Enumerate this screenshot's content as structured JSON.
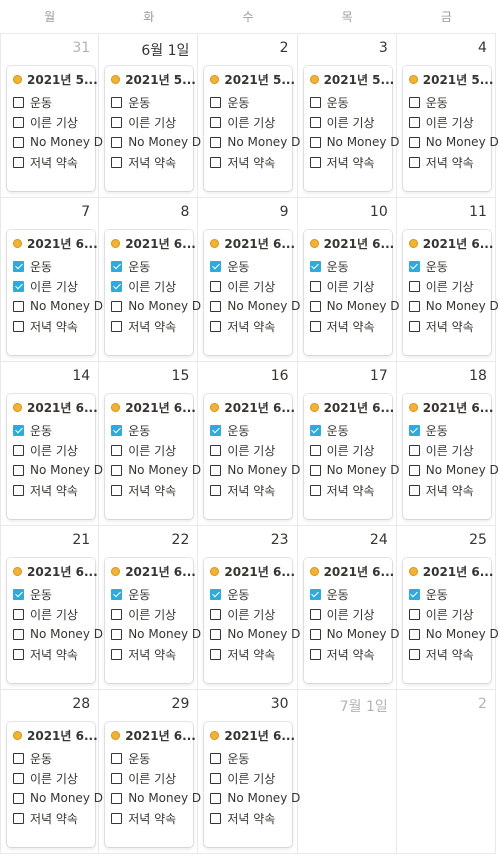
{
  "weekdays": [
    "월",
    "화",
    "수",
    "목",
    "금"
  ],
  "weeks": [
    {
      "days": [
        {
          "number": "31",
          "muted": true,
          "card": {
            "title": "2021년 5...",
            "tasks": [
              {
                "label": "운동",
                "checked": false
              },
              {
                "label": "이른 기상",
                "checked": false
              },
              {
                "label": "No Money D",
                "checked": false
              },
              {
                "label": "저녁 약속",
                "checked": false
              }
            ]
          }
        },
        {
          "number": "6월 1일",
          "muted": false,
          "card": {
            "title": "2021년 5...",
            "tasks": [
              {
                "label": "운동",
                "checked": false
              },
              {
                "label": "이른 기상",
                "checked": false
              },
              {
                "label": "No Money D",
                "checked": false
              },
              {
                "label": "저녁 약속",
                "checked": false
              }
            ]
          }
        },
        {
          "number": "2",
          "muted": false,
          "card": {
            "title": "2021년 5...",
            "tasks": [
              {
                "label": "운동",
                "checked": false
              },
              {
                "label": "이른 기상",
                "checked": false
              },
              {
                "label": "No Money D",
                "checked": false
              },
              {
                "label": "저녁 약속",
                "checked": false
              }
            ]
          }
        },
        {
          "number": "3",
          "muted": false,
          "card": {
            "title": "2021년 5...",
            "tasks": [
              {
                "label": "운동",
                "checked": false
              },
              {
                "label": "이른 기상",
                "checked": false
              },
              {
                "label": "No Money D",
                "checked": false
              },
              {
                "label": "저녁 약속",
                "checked": false
              }
            ]
          }
        },
        {
          "number": "4",
          "muted": false,
          "card": {
            "title": "2021년 5...",
            "tasks": [
              {
                "label": "운동",
                "checked": false
              },
              {
                "label": "이른 기상",
                "checked": false
              },
              {
                "label": "No Money D",
                "checked": false
              },
              {
                "label": "저녁 약속",
                "checked": false
              }
            ]
          }
        }
      ]
    },
    {
      "days": [
        {
          "number": "7",
          "muted": false,
          "card": {
            "title": "2021년 6...",
            "tasks": [
              {
                "label": "운동",
                "checked": true
              },
              {
                "label": "이른 기상",
                "checked": true
              },
              {
                "label": "No Money D",
                "checked": false
              },
              {
                "label": "저녁 약속",
                "checked": false
              }
            ]
          }
        },
        {
          "number": "8",
          "muted": false,
          "card": {
            "title": "2021년 6...",
            "tasks": [
              {
                "label": "운동",
                "checked": true
              },
              {
                "label": "이른 기상",
                "checked": true
              },
              {
                "label": "No Money D",
                "checked": false
              },
              {
                "label": "저녁 약속",
                "checked": false
              }
            ]
          }
        },
        {
          "number": "9",
          "muted": false,
          "card": {
            "title": "2021년 6...",
            "tasks": [
              {
                "label": "운동",
                "checked": true
              },
              {
                "label": "이른 기상",
                "checked": false
              },
              {
                "label": "No Money D",
                "checked": false
              },
              {
                "label": "저녁 약속",
                "checked": false
              }
            ]
          }
        },
        {
          "number": "10",
          "muted": false,
          "card": {
            "title": "2021년 6...",
            "tasks": [
              {
                "label": "운동",
                "checked": true
              },
              {
                "label": "이른 기상",
                "checked": false
              },
              {
                "label": "No Money D",
                "checked": false
              },
              {
                "label": "저녁 약속",
                "checked": false
              }
            ]
          }
        },
        {
          "number": "11",
          "muted": false,
          "card": {
            "title": "2021년 6...",
            "tasks": [
              {
                "label": "운동",
                "checked": true
              },
              {
                "label": "이른 기상",
                "checked": false
              },
              {
                "label": "No Money D",
                "checked": false
              },
              {
                "label": "저녁 약속",
                "checked": false
              }
            ]
          }
        }
      ]
    },
    {
      "days": [
        {
          "number": "14",
          "muted": false,
          "card": {
            "title": "2021년 6...",
            "tasks": [
              {
                "label": "운동",
                "checked": true
              },
              {
                "label": "이른 기상",
                "checked": false
              },
              {
                "label": "No Money D",
                "checked": false
              },
              {
                "label": "저녁 약속",
                "checked": false
              }
            ]
          }
        },
        {
          "number": "15",
          "muted": false,
          "card": {
            "title": "2021년 6...",
            "tasks": [
              {
                "label": "운동",
                "checked": true
              },
              {
                "label": "이른 기상",
                "checked": false
              },
              {
                "label": "No Money D",
                "checked": false
              },
              {
                "label": "저녁 약속",
                "checked": false
              }
            ]
          }
        },
        {
          "number": "16",
          "muted": false,
          "card": {
            "title": "2021년 6...",
            "tasks": [
              {
                "label": "운동",
                "checked": true
              },
              {
                "label": "이른 기상",
                "checked": false
              },
              {
                "label": "No Money D",
                "checked": false
              },
              {
                "label": "저녁 약속",
                "checked": false
              }
            ]
          }
        },
        {
          "number": "17",
          "muted": false,
          "card": {
            "title": "2021년 6...",
            "tasks": [
              {
                "label": "운동",
                "checked": true
              },
              {
                "label": "이른 기상",
                "checked": false
              },
              {
                "label": "No Money D",
                "checked": false
              },
              {
                "label": "저녁 약속",
                "checked": false
              }
            ]
          }
        },
        {
          "number": "18",
          "muted": false,
          "card": {
            "title": "2021년 6...",
            "tasks": [
              {
                "label": "운동",
                "checked": true
              },
              {
                "label": "이른 기상",
                "checked": false
              },
              {
                "label": "No Money D",
                "checked": false
              },
              {
                "label": "저녁 약속",
                "checked": false
              }
            ]
          }
        }
      ]
    },
    {
      "days": [
        {
          "number": "21",
          "muted": false,
          "card": {
            "title": "2021년 6...",
            "tasks": [
              {
                "label": "운동",
                "checked": true
              },
              {
                "label": "이른 기상",
                "checked": false
              },
              {
                "label": "No Money D",
                "checked": false
              },
              {
                "label": "저녁 약속",
                "checked": false
              }
            ]
          }
        },
        {
          "number": "22",
          "muted": false,
          "card": {
            "title": "2021년 6...",
            "tasks": [
              {
                "label": "운동",
                "checked": true
              },
              {
                "label": "이른 기상",
                "checked": false
              },
              {
                "label": "No Money D",
                "checked": false
              },
              {
                "label": "저녁 약속",
                "checked": false
              }
            ]
          }
        },
        {
          "number": "23",
          "muted": false,
          "card": {
            "title": "2021년 6...",
            "tasks": [
              {
                "label": "운동",
                "checked": true
              },
              {
                "label": "이른 기상",
                "checked": false
              },
              {
                "label": "No Money D",
                "checked": false
              },
              {
                "label": "저녁 약속",
                "checked": false
              }
            ]
          }
        },
        {
          "number": "24",
          "muted": false,
          "card": {
            "title": "2021년 6...",
            "tasks": [
              {
                "label": "운동",
                "checked": true
              },
              {
                "label": "이른 기상",
                "checked": false
              },
              {
                "label": "No Money D",
                "checked": false
              },
              {
                "label": "저녁 약속",
                "checked": false
              }
            ]
          }
        },
        {
          "number": "25",
          "muted": false,
          "card": {
            "title": "2021년 6...",
            "tasks": [
              {
                "label": "운동",
                "checked": true
              },
              {
                "label": "이른 기상",
                "checked": false
              },
              {
                "label": "No Money D",
                "checked": false
              },
              {
                "label": "저녁 약속",
                "checked": false
              }
            ]
          }
        }
      ]
    },
    {
      "days": [
        {
          "number": "28",
          "muted": false,
          "card": {
            "title": "2021년 6...",
            "tasks": [
              {
                "label": "운동",
                "checked": false
              },
              {
                "label": "이른 기상",
                "checked": false
              },
              {
                "label": "No Money D",
                "checked": false
              },
              {
                "label": "저녁 약속",
                "checked": false
              }
            ]
          }
        },
        {
          "number": "29",
          "muted": false,
          "card": {
            "title": "2021년 6...",
            "tasks": [
              {
                "label": "운동",
                "checked": false
              },
              {
                "label": "이른 기상",
                "checked": false
              },
              {
                "label": "No Money D",
                "checked": false
              },
              {
                "label": "저녁 약속",
                "checked": false
              }
            ]
          }
        },
        {
          "number": "30",
          "muted": false,
          "card": {
            "title": "2021년 6...",
            "tasks": [
              {
                "label": "운동",
                "checked": false
              },
              {
                "label": "이른 기상",
                "checked": false
              },
              {
                "label": "No Money D",
                "checked": false
              },
              {
                "label": "저녁 약속",
                "checked": false
              }
            ]
          }
        },
        {
          "number": "7월 1일",
          "muted": true,
          "card": null
        },
        {
          "number": "2",
          "muted": true,
          "card": null
        }
      ]
    }
  ]
}
